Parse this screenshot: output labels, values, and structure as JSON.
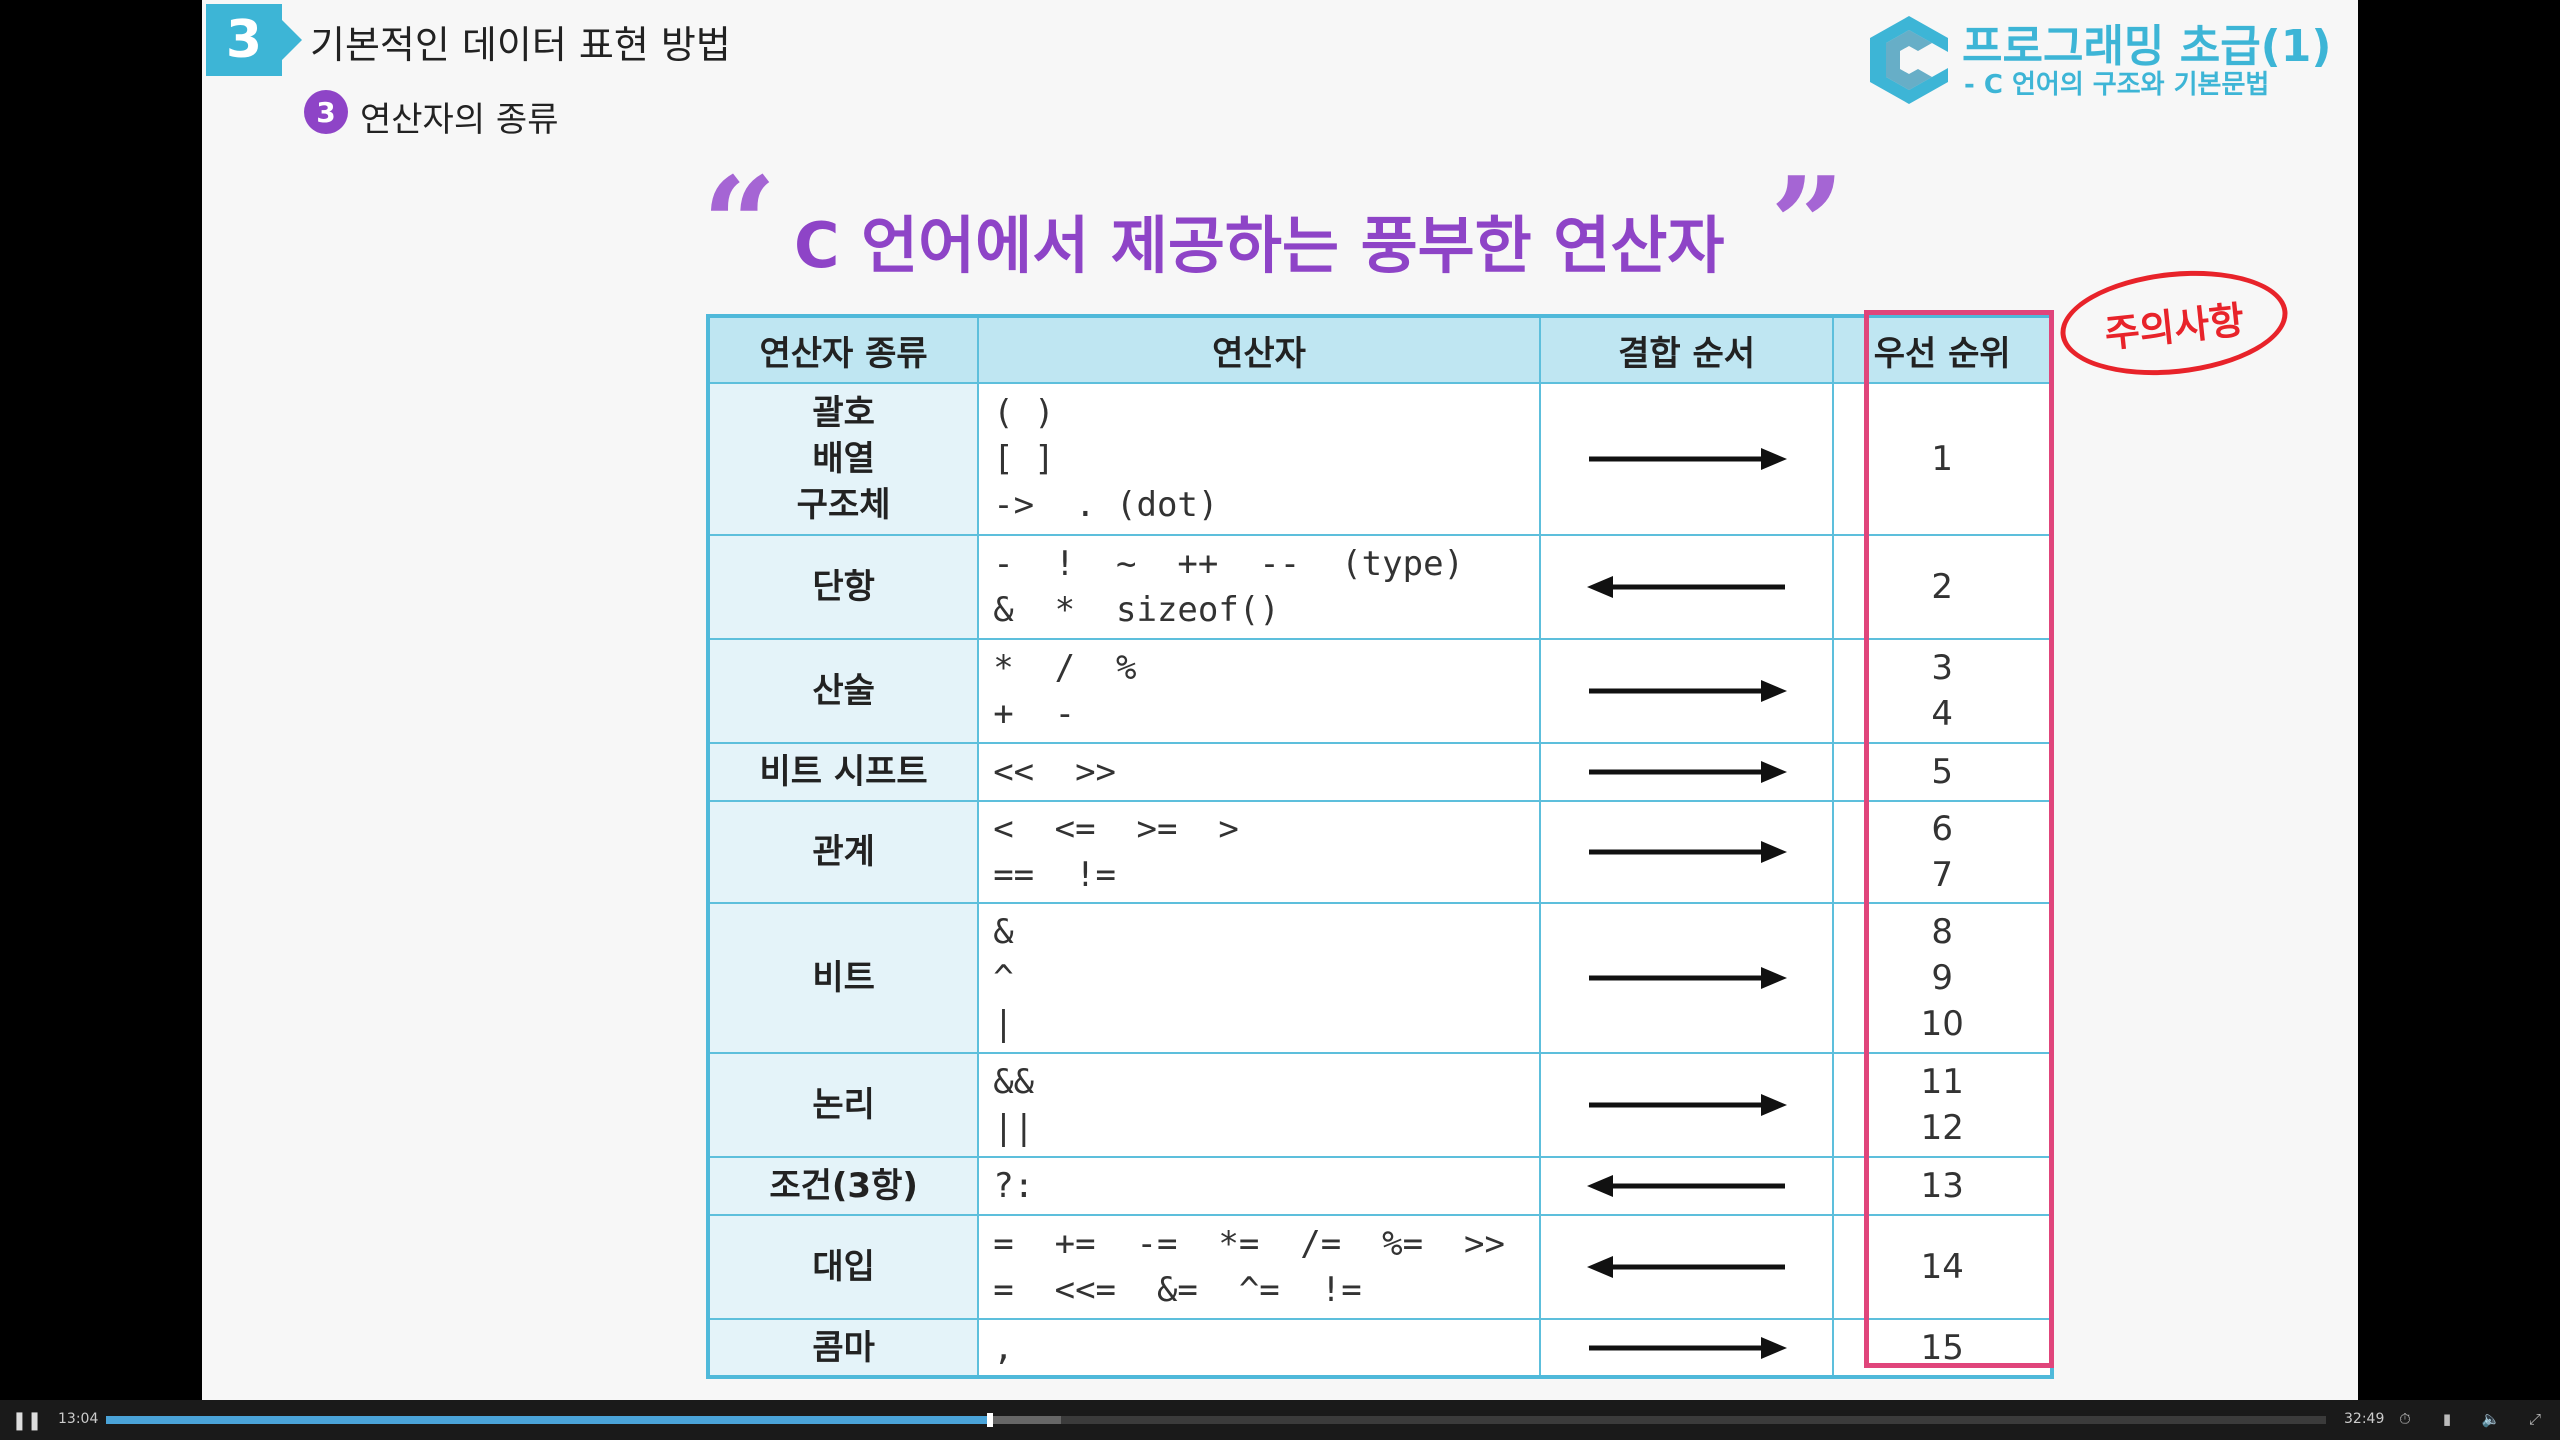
{
  "header": {
    "section_number": "3",
    "section_title": "기본적인 데이터 표현 방법",
    "sub_number": "3",
    "sub_title": "연산자의 종류"
  },
  "course": {
    "title": "프로그래밍 초급(1)",
    "subtitle": "- C 언어의 구조와 기본문법"
  },
  "headline": {
    "open_quote": "“",
    "text": "C 언어에서 제공하는 풍부한 연산자",
    "close_quote": "”"
  },
  "table": {
    "headers": [
      "연산자 종류",
      "연산자",
      "결합 순서",
      "우선 순위"
    ],
    "rows": [
      {
        "category": "괄호\n배열\n구조체",
        "operators": "( )\n[ ]\n->  . (dot)",
        "direction": "right",
        "precedence": "1"
      },
      {
        "category": "단항",
        "operators": "-  !  ~  ++  --  (type)\n&  *  sizeof()",
        "direction": "left",
        "precedence": "2"
      },
      {
        "category": "산술",
        "operators": "*  /  %\n+  -",
        "direction": "right",
        "precedence": "3\n4"
      },
      {
        "category": "비트 시프트",
        "operators": "<<  >>",
        "direction": "right",
        "precedence": "5"
      },
      {
        "category": "관계",
        "operators": "<  <=  >=  >\n==  !=",
        "direction": "right",
        "precedence": "6\n7"
      },
      {
        "category": "비트",
        "operators": "&\n^\n|",
        "direction": "right",
        "precedence": "8\n9\n10"
      },
      {
        "category": "논리",
        "operators": "&&\n||",
        "direction": "right",
        "precedence": "11\n12"
      },
      {
        "category": "조건(3항)",
        "operators": "?:",
        "direction": "left",
        "precedence": "13"
      },
      {
        "category": "대입",
        "operators": "=  +=  -=  *=  /=  %=  >>\n=  <<=  &=  ^=  !=",
        "direction": "left",
        "precedence": "14"
      },
      {
        "category": "콤마",
        "operators": ",",
        "direction": "right",
        "precedence": "15"
      }
    ]
  },
  "annotation": {
    "note_text": "주의사항"
  },
  "player": {
    "current_time": "13:04",
    "total_time": "32:49",
    "progress_fraction": 0.398,
    "buffered_fraction": 0.43,
    "play_state_icon": "pause-icon"
  },
  "colors": {
    "accent_cyan": "#3db5d6",
    "accent_purple": "#8e44c7",
    "highlight_pink": "#e0457b",
    "note_red": "#e8232a"
  }
}
